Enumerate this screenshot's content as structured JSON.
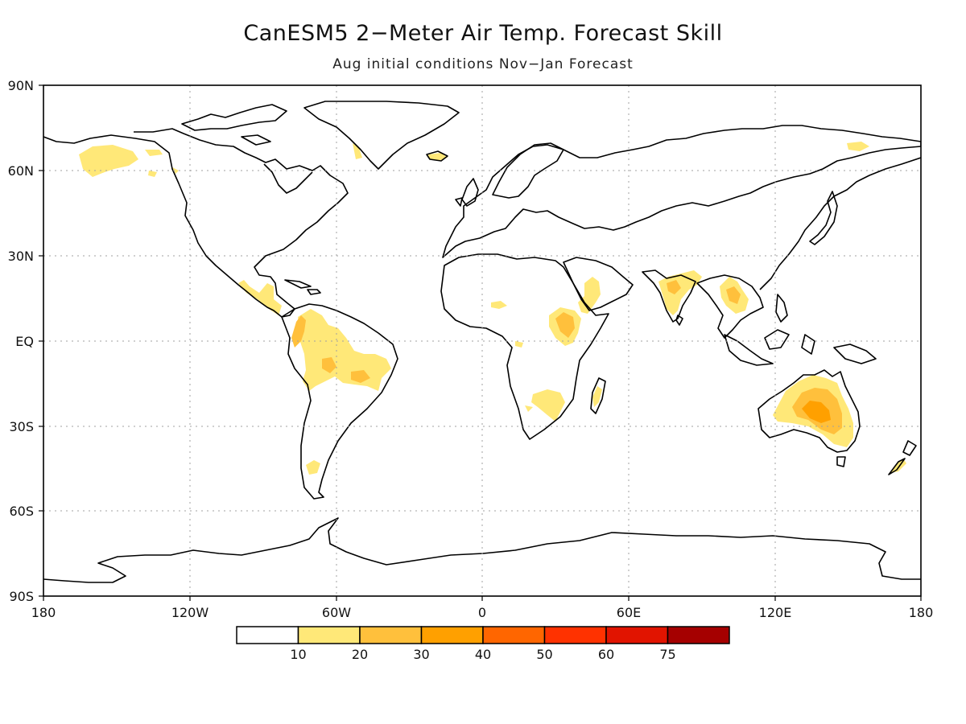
{
  "title": "CanESM5 2−Meter Air Temp. Forecast Skill",
  "subtitle": "Aug initial conditions  Nov−Jan Forecast",
  "axes": {
    "lat_labels": [
      "90N",
      "60N",
      "30N",
      "EQ",
      "30S",
      "60S",
      "90S"
    ],
    "lon_labels": [
      "180",
      "120W",
      "60W",
      "0",
      "60E",
      "120E",
      "180"
    ]
  },
  "colorbar": {
    "labels": [
      "10",
      "20",
      "30",
      "40",
      "50",
      "60",
      "75"
    ],
    "colors": [
      "#ffffff",
      "#ffe878",
      "#ffc03c",
      "#ffa000",
      "#ff6600",
      "#ff3200",
      "#e11400",
      "#a50000"
    ]
  },
  "colors": {
    "land_outline": "#000000",
    "grid": "#a0a0a0"
  },
  "chart_data": {
    "type": "heatmap",
    "title": "CanESM5 2−Meter Air Temp. Forecast Skill",
    "subtitle": "Aug initial conditions  Nov−Jan Forecast",
    "projection": "equirectangular",
    "xlim": [
      -180,
      180
    ],
    "ylim": [
      -90,
      90
    ],
    "grid": true,
    "levels": [
      10,
      20,
      30,
      40,
      50,
      60,
      75
    ],
    "regions": [
      {
        "region": "Alaska",
        "level": 10
      },
      {
        "region": "Central America / Mexico",
        "level": 10
      },
      {
        "region": "NW South America (Colombia/Ecuador)",
        "level": 20
      },
      {
        "region": "Amazon / Brazil",
        "level": 10
      },
      {
        "region": "East Africa",
        "level": 30
      },
      {
        "region": "Southern Africa",
        "level": 10
      },
      {
        "region": "Arabian Peninsula",
        "level": 10
      },
      {
        "region": "India",
        "level": 10
      },
      {
        "region": "Indochina",
        "level": 20
      },
      {
        "region": "Australia",
        "level": 30
      },
      {
        "region": "Iceland",
        "level": 10
      },
      {
        "region": "New Zealand",
        "level": 10
      }
    ]
  }
}
